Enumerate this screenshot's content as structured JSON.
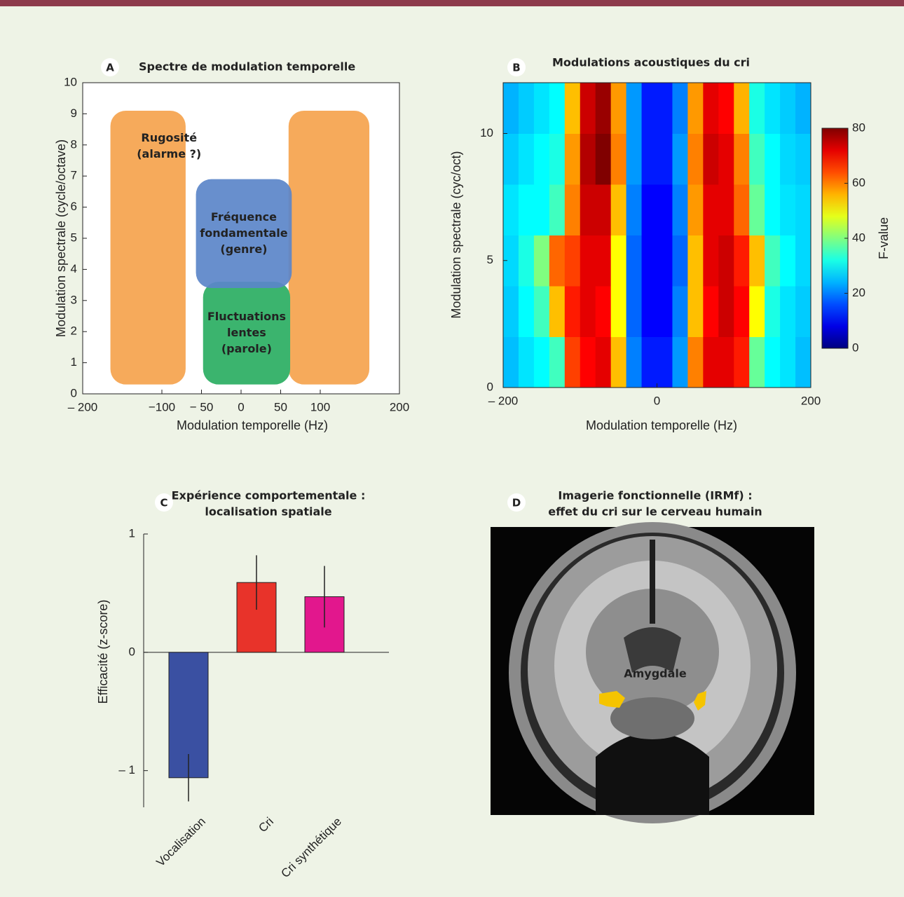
{
  "chart_data": [
    {
      "type": "regions",
      "panel": "A",
      "title": "Spectre de modulation temporelle",
      "x_label": "Modulation temporelle (Hz)",
      "y_label": "Modulation spectrale (cycle/octave)",
      "xlim": [
        -200,
        200
      ],
      "ylim": [
        0,
        10
      ],
      "xticks": [
        {
          "value": -200,
          "label": "– 200"
        },
        {
          "value": -100,
          "label": "−100"
        },
        {
          "value": -50,
          "label": "− 50"
        },
        0,
        50,
        100,
        200
      ],
      "yticks": [
        0,
        1,
        2,
        3,
        4,
        5,
        6,
        7,
        8,
        9,
        10
      ],
      "regions": [
        {
          "x": [
            -165,
            -70
          ],
          "y": [
            0.3,
            9.1
          ],
          "color": "#f6aa5b",
          "label": [
            "Rugosité",
            "(alarme ?)"
          ],
          "label_color": "#6b2a10"
        },
        {
          "x": [
            60,
            162
          ],
          "y": [
            0.3,
            9.1
          ],
          "color": "#f6aa5b"
        },
        {
          "x": [
            -48,
            62
          ],
          "y": [
            0.3,
            3.6
          ],
          "color": "#3bb46e",
          "label": [
            "Fluctuations",
            "lentes",
            "(parole)"
          ],
          "label_color": "#ffffff"
        },
        {
          "x": [
            -57,
            64
          ],
          "y": [
            3.4,
            6.9
          ],
          "color": "#5b86c9",
          "label": [
            "Fréquence",
            "fondamentale",
            "(genre)"
          ],
          "label_color": "#ffffff"
        }
      ]
    },
    {
      "type": "heatmap",
      "panel": "B",
      "title": "Modulations acoustiques du cri",
      "x_label": "Modulation temporelle (Hz)",
      "y_label": "Modulation spectrale (cyc/oct)",
      "colorbar_label": "F-value",
      "xlim": [
        -200,
        200
      ],
      "ylim": [
        0,
        12
      ],
      "clim": [
        0,
        80
      ],
      "xticks": [
        {
          "value": -200,
          "label": "– 200"
        },
        0,
        200
      ],
      "yticks": [
        0,
        5,
        10
      ],
      "cticks": [
        0,
        20,
        40,
        60,
        80
      ],
      "x_bins": [
        -200,
        -180,
        -160,
        -140,
        -120,
        -100,
        -80,
        -60,
        -40,
        -20,
        0,
        20,
        40,
        60,
        80,
        100,
        120,
        140,
        160,
        180,
        200
      ],
      "y_bins": [
        0,
        2,
        4,
        6,
        8,
        10,
        12
      ],
      "z": [
        [
          25,
          28,
          30,
          35,
          65,
          70,
          72,
          55,
          20,
          12,
          12,
          22,
          60,
          72,
          72,
          68,
          38,
          30,
          28,
          25
        ],
        [
          26,
          30,
          35,
          55,
          68,
          72,
          70,
          50,
          18,
          10,
          10,
          20,
          55,
          70,
          74,
          70,
          50,
          32,
          28,
          26
        ],
        [
          27,
          32,
          40,
          62,
          65,
          72,
          72,
          50,
          18,
          10,
          10,
          18,
          55,
          72,
          74,
          68,
          55,
          35,
          30,
          27
        ],
        [
          28,
          30,
          30,
          35,
          60,
          74,
          74,
          55,
          20,
          10,
          10,
          20,
          58,
          72,
          72,
          62,
          38,
          30,
          28,
          27
        ],
        [
          26,
          28,
          30,
          32,
          58,
          76,
          80,
          60,
          22,
          12,
          12,
          22,
          60,
          74,
          72,
          60,
          35,
          30,
          27,
          26
        ],
        [
          24,
          26,
          28,
          30,
          55,
          74,
          78,
          58,
          22,
          12,
          12,
          20,
          58,
          72,
          70,
          56,
          32,
          28,
          26,
          24
        ]
      ]
    },
    {
      "type": "bar",
      "panel": "C",
      "title": [
        "Expérience comportementale :",
        "localisation spatiale"
      ],
      "y_label": "Efficacité (z-score)",
      "categories": [
        "Vocalisation",
        "Cri",
        "Cri synthétique"
      ],
      "values": [
        -1.06,
        0.59,
        0.47
      ],
      "errors": [
        0.2,
        0.23,
        0.26
      ],
      "colors": [
        "#3a50a2",
        "#e8332a",
        "#e2178d"
      ],
      "ylim": [
        -1.31,
        1
      ],
      "yticks": [
        {
          "value": -1,
          "label": "– 1"
        },
        0,
        1
      ]
    }
  ],
  "figure_d": {
    "panel": "D",
    "title": [
      "Imagerie fonctionnelle (IRMf) :",
      "effet du cri sur le cerveau humain"
    ],
    "annotation": "Amygdale"
  }
}
